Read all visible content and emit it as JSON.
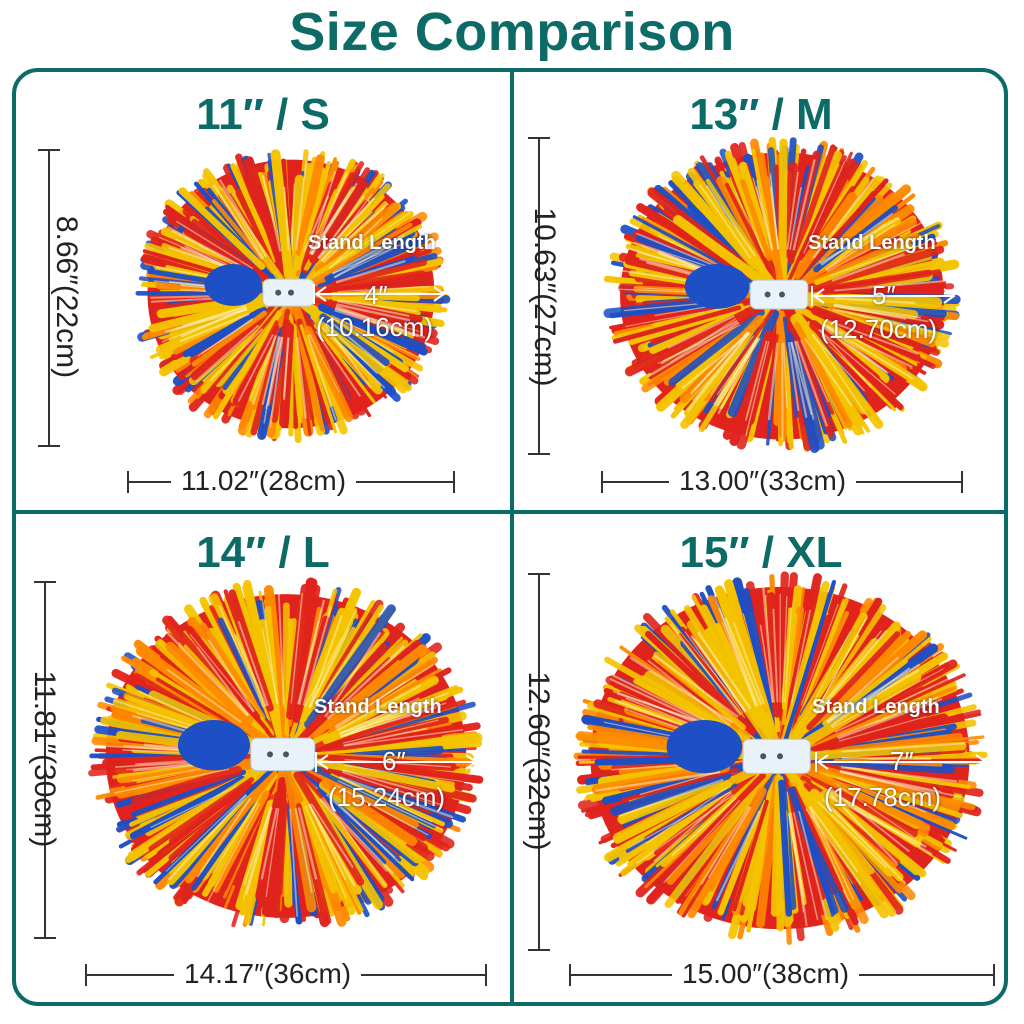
{
  "title": "Size Comparison",
  "colors": {
    "accent": "#0c6b67",
    "pompom_red": "#e0231c",
    "pompom_yellow": "#f5c400",
    "pompom_blue": "#1e4fc4"
  },
  "sizes": [
    {
      "label": "11″ / S",
      "height": "8.66″(22cm)",
      "width": "11.02″(28cm)",
      "stand_label": "Stand Length",
      "stand_in": "4″",
      "stand_cm": "(10.16cm)"
    },
    {
      "label": "13″ / M",
      "height": "10.63″(27cm)",
      "width": "13.00″(33cm)",
      "stand_label": "Stand Length",
      "stand_in": "5″",
      "stand_cm": "(12.70cm)"
    },
    {
      "label": "14″ / L",
      "height": "11.81″(30cm)",
      "width": "14.17″(36cm)",
      "stand_label": "Stand Length",
      "stand_in": "6″",
      "stand_cm": "(15.24cm)"
    },
    {
      "label": "15″ / XL",
      "height": "12.60″(32cm)",
      "width": "15.00″(38cm)",
      "stand_label": "Stand Length",
      "stand_in": "7″",
      "stand_cm": "(17.78cm)"
    }
  ]
}
